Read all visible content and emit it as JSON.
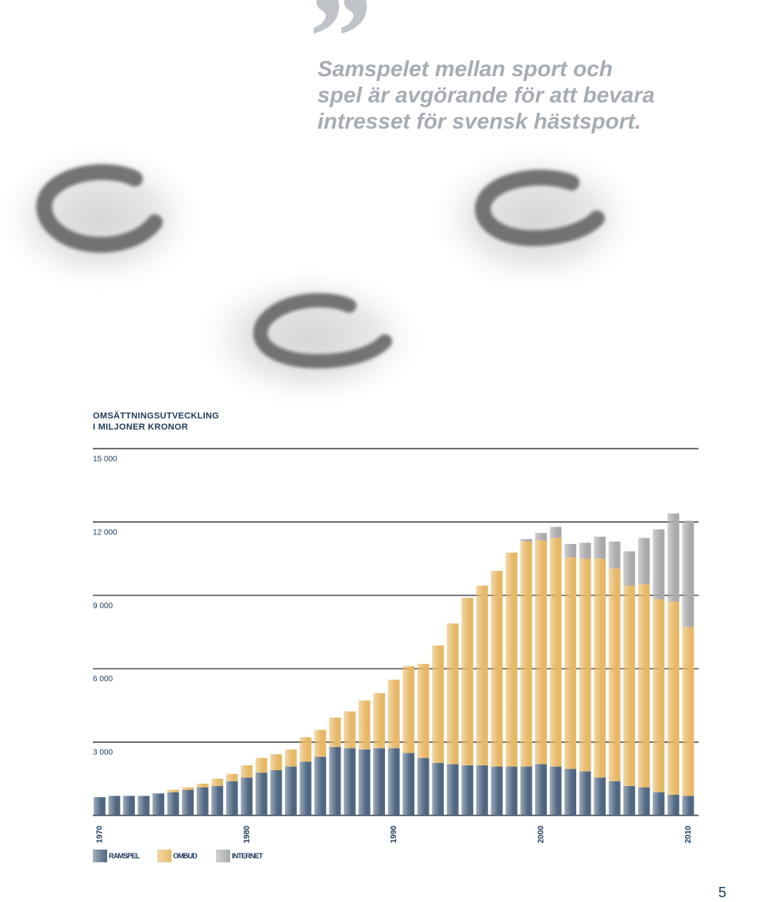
{
  "quote": {
    "mark": "”",
    "lines": [
      "Samspelet mellan sport och",
      "spel är avgörande för att bevara",
      "intresset för svensk hästsport."
    ]
  },
  "decoration": {
    "image": "horseshoe-imprints-in-sand",
    "count": 3
  },
  "chart_data": {
    "type": "bar",
    "stacked": true,
    "title": "OMSÄTTNINGSUTVECKLING",
    "subtitle": "I MILJONER KRONOR",
    "yticks": [
      "3 000",
      "6 000",
      "9 000",
      "12 000",
      "15 000"
    ],
    "ylim": [
      0,
      15000
    ],
    "grid": true,
    "xticks": [
      "1970",
      "1980",
      "1990",
      "2000",
      "2010"
    ],
    "x": [
      1970,
      1971,
      1972,
      1973,
      1974,
      1975,
      1976,
      1977,
      1978,
      1979,
      1980,
      1981,
      1982,
      1983,
      1984,
      1985,
      1986,
      1987,
      1988,
      1989,
      1990,
      1991,
      1992,
      1993,
      1994,
      1995,
      1996,
      1997,
      1998,
      1999,
      2000,
      2001,
      2002,
      2003,
      2004,
      2005,
      2006,
      2007,
      2008,
      2009,
      2010
    ],
    "series": [
      {
        "name": "RAMSPEL",
        "color": "#4f6782",
        "values": [
          750,
          800,
          800,
          800,
          900,
          950,
          1050,
          1150,
          1200,
          1400,
          1550,
          1750,
          1850,
          2000,
          2200,
          2400,
          2800,
          2750,
          2700,
          2750,
          2750,
          2550,
          2350,
          2150,
          2100,
          2050,
          2050,
          2000,
          2000,
          2000,
          2100,
          2000,
          1900,
          1800,
          1550,
          1400,
          1200,
          1150,
          950,
          850,
          800
        ]
      },
      {
        "name": "OMBUD",
        "color": "#e7b866",
        "values": [
          0,
          0,
          0,
          0,
          0,
          100,
          100,
          150,
          300,
          300,
          500,
          600,
          650,
          700,
          1000,
          1100,
          1200,
          1500,
          2000,
          2250,
          2800,
          3550,
          3850,
          4800,
          5750,
          6850,
          7350,
          8000,
          8750,
          9200,
          9150,
          9350,
          8650,
          8700,
          8950,
          8700,
          8200,
          8300,
          7900,
          7900,
          6900
        ]
      },
      {
        "name": "INTERNET",
        "color": "#aaaaac",
        "values": [
          0,
          0,
          0,
          0,
          0,
          0,
          0,
          0,
          0,
          0,
          0,
          0,
          0,
          0,
          0,
          0,
          0,
          0,
          0,
          0,
          0,
          0,
          0,
          0,
          0,
          0,
          0,
          0,
          0,
          100,
          300,
          450,
          550,
          650,
          900,
          1100,
          1400,
          1900,
          2850,
          3600,
          4350
        ]
      }
    ]
  },
  "page_number": "5"
}
